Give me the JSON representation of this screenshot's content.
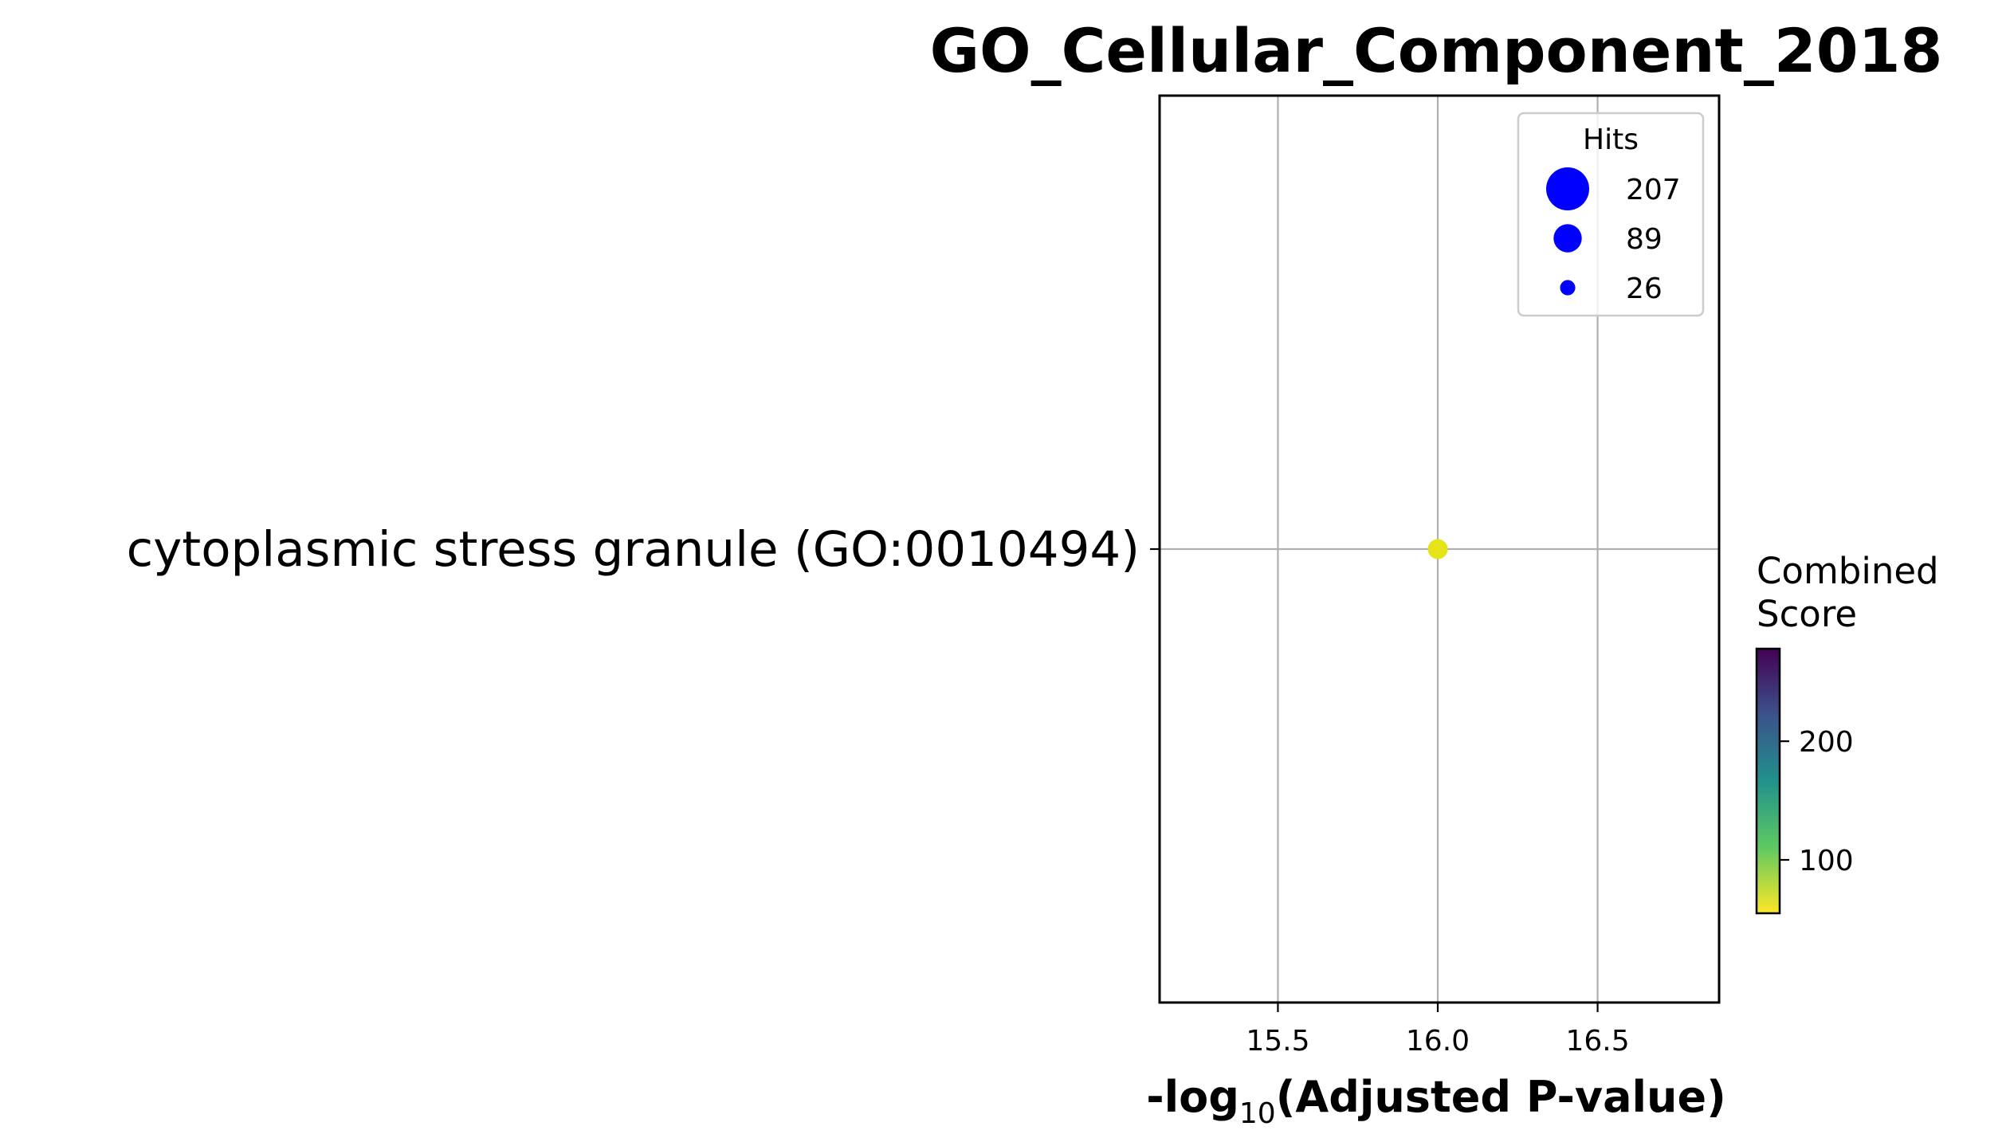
{
  "chart_data": {
    "type": "scatter",
    "title": "GO_Cellular_Component_2018",
    "xlabel": {
      "pre": "-log",
      "sub": "10",
      "post": "(Adjusted P-value)"
    },
    "ylabel": "",
    "categories": [
      "cytoplasmic stress granule (GO:0010494)"
    ],
    "points": [
      {
        "term": "cytoplasmic stress granule (GO:0010494)",
        "x": 16.0,
        "hits": 26,
        "combined_score": 55
      }
    ],
    "xlim": [
      15.13,
      16.88
    ],
    "xticks": [
      "15.5",
      "16.0",
      "16.5"
    ],
    "grid": true,
    "legend": {
      "title": "Hits",
      "placement": "top-right",
      "marker_color": "#0000ff",
      "entries": [
        "207",
        "89",
        "26"
      ]
    },
    "colorbar": {
      "title_lines": [
        "Combined",
        "Score"
      ],
      "colormap": "viridis (reversed)",
      "range": [
        55,
        278
      ],
      "ticks": [
        "100",
        "200"
      ]
    }
  }
}
